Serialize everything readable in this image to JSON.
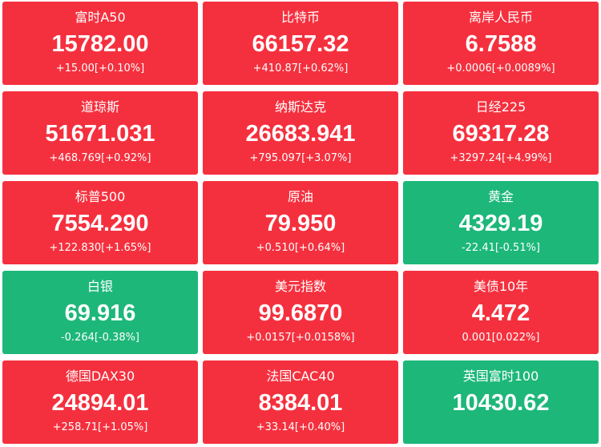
{
  "tiles": [
    {
      "name": "富时A50",
      "price": "15782.00",
      "change": "+15.00[+0.10%]",
      "color": "#f5303e"
    },
    {
      "name": "比特币",
      "price": "66157.32",
      "change": "+410.87[+0.62%]",
      "color": "#f5303e"
    },
    {
      "name": "离岸人民币",
      "price": "6.7588",
      "change": "+0.0006[+0.0089%]",
      "color": "#f5303e"
    },
    {
      "name": "道琼斯",
      "price": "51671.031",
      "change": "+468.769[+0.92%]",
      "color": "#f5303e"
    },
    {
      "name": "纳斯达克",
      "price": "26683.941",
      "change": "+795.097[+3.07%]",
      "color": "#f5303e"
    },
    {
      "name": "日经225",
      "price": "69317.28",
      "change": "+3297.24[+4.99%]",
      "color": "#f5303e"
    },
    {
      "name": "标普500",
      "price": "7554.290",
      "change": "+122.830[+1.65%]",
      "color": "#f5303e"
    },
    {
      "name": "原油",
      "price": "79.950",
      "change": "+0.510[+0.64%]",
      "color": "#f5303e"
    },
    {
      "name": "黄金",
      "price": "4329.19",
      "change": "-22.41[-0.51%]",
      "color": "#1db77a"
    },
    {
      "name": "白银",
      "price": "69.916",
      "change": "-0.264[-0.38%]",
      "color": "#1db77a"
    },
    {
      "name": "美元指数",
      "price": "99.6870",
      "change": "+0.0157[+0.0158%]",
      "color": "#f5303e"
    },
    {
      "name": "美债10年",
      "price": "4.472",
      "change": "0.001[0.022%]",
      "color": "#f5303e"
    },
    {
      "name": "德国DAX30",
      "price": "24894.01",
      "change": "+258.71[+1.05%]",
      "color": "#f5303e"
    },
    {
      "name": "法国CAC40",
      "price": "8384.01",
      "change": "+33.14[+0.40%]",
      "color": "#f5303e"
    },
    {
      "name": "英国富时100",
      "price": "10430.62",
      "color": "#1db77a"
    }
  ]
}
